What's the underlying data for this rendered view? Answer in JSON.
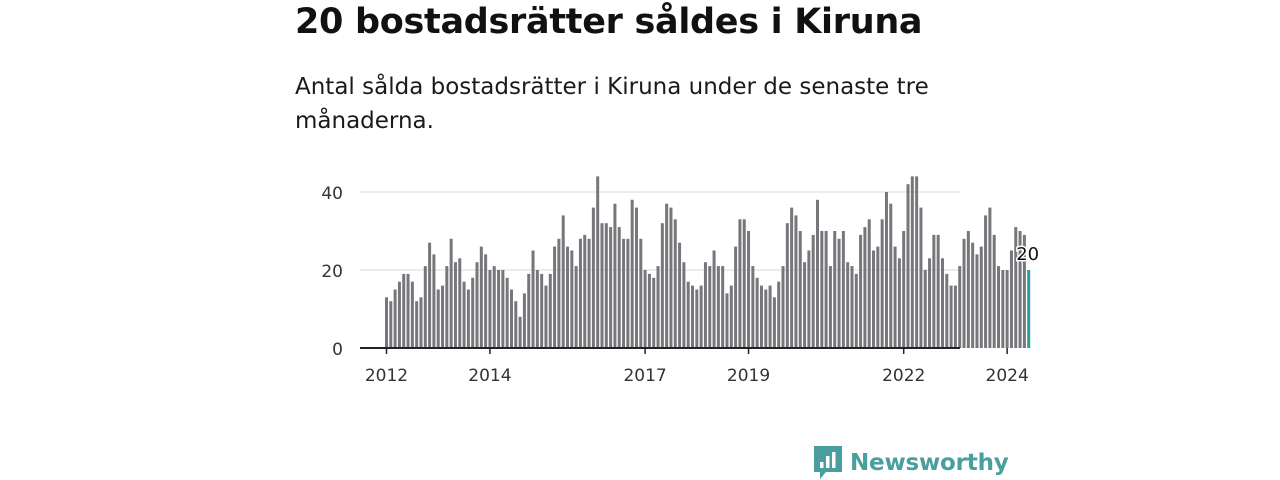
{
  "title": "20 bostadsrätter såldes i Kiruna",
  "subtitle": "Antal sålda bostadsrätter i Kiruna under de senaste tre månaderna.",
  "brand": {
    "name": "Newsworthy",
    "icon": "newsworthy-logo-icon"
  },
  "colors": {
    "bar": "#76767b",
    "highlight": "#2b9c97",
    "grid": "#d9d9d9",
    "axis": "#222222",
    "brand": "#4a9e9d"
  },
  "chart_data": {
    "type": "bar",
    "title": "20 bostadsrätter såldes i Kiruna",
    "xlabel": "",
    "ylabel": "",
    "ylim": [
      0,
      45
    ],
    "yticks": [
      0,
      20,
      40
    ],
    "ytick_labels": [
      "0",
      "20",
      "40"
    ],
    "xticks": [
      {
        "index": 0,
        "label": "2012"
      },
      {
        "index": 24,
        "label": "2014"
      },
      {
        "index": 60,
        "label": "2017"
      },
      {
        "index": 84,
        "label": "2019"
      },
      {
        "index": 120,
        "label": "2022"
      },
      {
        "index": 144,
        "label": "2024"
      }
    ],
    "start": "2012-01",
    "values": [
      13,
      12,
      15,
      17,
      19,
      19,
      17,
      12,
      13,
      21,
      27,
      24,
      15,
      16,
      21,
      28,
      22,
      23,
      17,
      15,
      18,
      22,
      26,
      24,
      20,
      21,
      20,
      20,
      18,
      15,
      12,
      8,
      14,
      19,
      25,
      20,
      19,
      16,
      19,
      26,
      28,
      34,
      26,
      25,
      21,
      28,
      29,
      28,
      36,
      44,
      32,
      32,
      31,
      37,
      31,
      28,
      28,
      38,
      36,
      28,
      20,
      19,
      18,
      21,
      32,
      37,
      36,
      33,
      27,
      22,
      17,
      16,
      15,
      16,
      22,
      21,
      25,
      21,
      21,
      14,
      16,
      26,
      33,
      33,
      30,
      21,
      18,
      16,
      15,
      16,
      13,
      17,
      21,
      32,
      36,
      34,
      30,
      22,
      25,
      29,
      38,
      30,
      30,
      21,
      30,
      28,
      30,
      22,
      21,
      19,
      29,
      31,
      33,
      25,
      26,
      33,
      40,
      37,
      26,
      23,
      30,
      42,
      44,
      44,
      36,
      20,
      23,
      29,
      29,
      23,
      19,
      16,
      16,
      21,
      28,
      30,
      27,
      24,
      26,
      34,
      36,
      29,
      21,
      20,
      20,
      25,
      31,
      30,
      29,
      20
    ],
    "highlight_index": 149,
    "annotation": {
      "index": 149,
      "label": "20"
    }
  }
}
